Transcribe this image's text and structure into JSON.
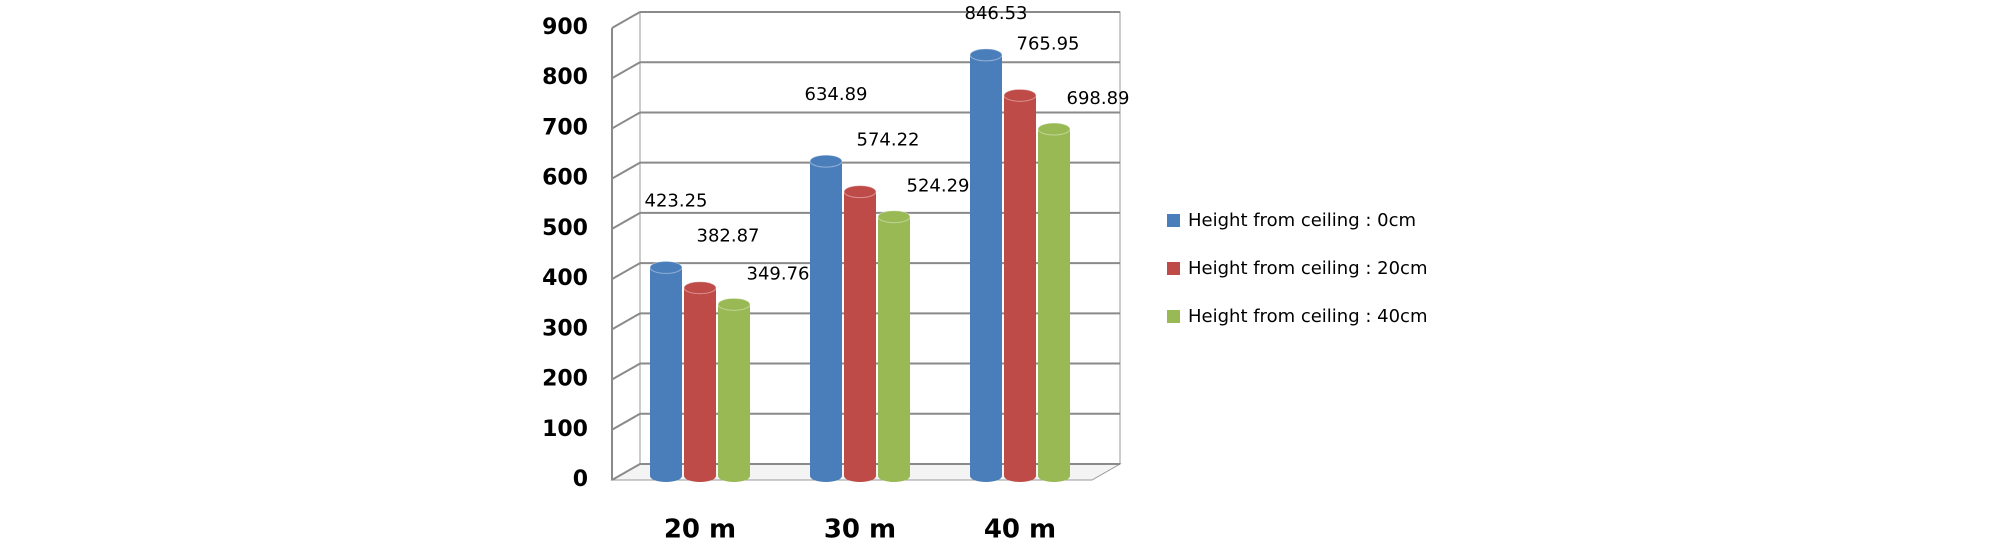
{
  "chart_data": {
    "type": "bar3d",
    "categories": [
      "20 m",
      "30 m",
      "40 m"
    ],
    "series": [
      {
        "name": "Height from ceiling : 0cm",
        "color": "#4a7ebb",
        "values": [
          423.25,
          634.89,
          846.53
        ]
      },
      {
        "name": "Height from ceiling : 20cm",
        "color": "#be4b48",
        "values": [
          382.87,
          574.22,
          765.95
        ]
      },
      {
        "name": "Height from ceiling : 40cm",
        "color": "#98b954",
        "values": [
          349.76,
          524.29,
          698.89
        ]
      }
    ],
    "ylim": [
      0,
      900
    ],
    "yticks": [
      0,
      100,
      200,
      300,
      400,
      500,
      600,
      700,
      800,
      900
    ],
    "grid": true,
    "legend": "right"
  }
}
